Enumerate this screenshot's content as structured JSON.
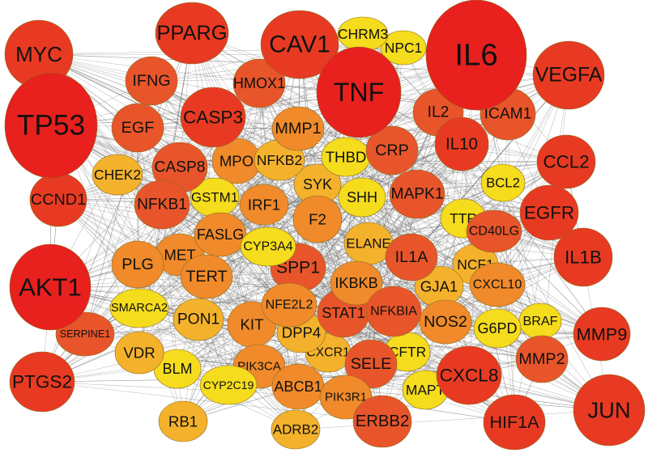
{
  "network": {
    "nodes": [
      {
        "label": "IL6",
        "tier": "max"
      },
      {
        "label": "TP53",
        "tier": "max"
      },
      {
        "label": "TNF",
        "tier": "max"
      },
      {
        "label": "AKT1",
        "tier": "max"
      },
      {
        "label": "JUN",
        "tier": "high"
      },
      {
        "label": "VEGFA",
        "tier": "high"
      },
      {
        "label": "MYC",
        "tier": "high"
      },
      {
        "label": "PPARG",
        "tier": "high"
      },
      {
        "label": "CAV1",
        "tier": "high"
      },
      {
        "label": "IL1B",
        "tier": "high"
      },
      {
        "label": "PTGS2",
        "tier": "high"
      },
      {
        "label": "CXCL8",
        "tier": "high"
      },
      {
        "label": "HIF1A",
        "tier": "high"
      },
      {
        "label": "CASP3",
        "tier": "high"
      },
      {
        "label": "MMP9",
        "tier": "high"
      },
      {
        "label": "CCL2",
        "tier": "high"
      },
      {
        "label": "EGFR",
        "tier": "high"
      },
      {
        "label": "IL10",
        "tier": "high"
      },
      {
        "label": "CCND1",
        "tier": "high"
      },
      {
        "label": "ERBB2",
        "tier": "midhigh"
      },
      {
        "label": "ICAM1",
        "tier": "midhigh"
      },
      {
        "label": "IL2",
        "tier": "midhigh"
      },
      {
        "label": "HMOX1",
        "tier": "midhigh"
      },
      {
        "label": "EGF",
        "tier": "midhigh"
      },
      {
        "label": "IFNG",
        "tier": "midhigh"
      },
      {
        "label": "CASP8",
        "tier": "midhigh"
      },
      {
        "label": "NFKB1",
        "tier": "midhigh"
      },
      {
        "label": "MAPK1",
        "tier": "midhigh"
      },
      {
        "label": "CRP",
        "tier": "midhigh"
      },
      {
        "label": "SPP1",
        "tier": "midhigh"
      },
      {
        "label": "STAT1",
        "tier": "midhigh"
      },
      {
        "label": "NFKBIA",
        "tier": "midhigh"
      },
      {
        "label": "IL1A",
        "tier": "midhigh"
      },
      {
        "label": "SELE",
        "tier": "midhigh"
      },
      {
        "label": "MMP2",
        "tier": "midhigh"
      },
      {
        "label": "SERPINE1",
        "tier": "midhigh"
      },
      {
        "label": "CD40LG",
        "tier": "midhigh"
      },
      {
        "label": "MMP1",
        "tier": "mid"
      },
      {
        "label": "MPO",
        "tier": "mid"
      },
      {
        "label": "PLG",
        "tier": "mid"
      },
      {
        "label": "IKBKB",
        "tier": "mid"
      },
      {
        "label": "NOS2",
        "tier": "mid"
      },
      {
        "label": "CXCL10",
        "tier": "mid"
      },
      {
        "label": "KIT",
        "tier": "mid"
      },
      {
        "label": "PIK3CA",
        "tier": "mid"
      },
      {
        "label": "ABCB1",
        "tier": "mid"
      },
      {
        "label": "PIK3R1",
        "tier": "mid"
      },
      {
        "label": "FASLG",
        "tier": "mid"
      },
      {
        "label": "TERT",
        "tier": "mid"
      },
      {
        "label": "MET",
        "tier": "mid"
      },
      {
        "label": "NFE2L2",
        "tier": "mid"
      },
      {
        "label": "F2",
        "tier": "mid"
      },
      {
        "label": "IRF1",
        "tier": "mid"
      },
      {
        "label": "NFKB2",
        "tier": "low"
      },
      {
        "label": "VDR",
        "tier": "low"
      },
      {
        "label": "PON1",
        "tier": "low"
      },
      {
        "label": "RB1",
        "tier": "low"
      },
      {
        "label": "CHEK2",
        "tier": "low"
      },
      {
        "label": "SYK",
        "tier": "low"
      },
      {
        "label": "ELANE",
        "tier": "low"
      },
      {
        "label": "GJA1",
        "tier": "low"
      },
      {
        "label": "NCF1",
        "tier": "low"
      },
      {
        "label": "DPP4",
        "tier": "low"
      },
      {
        "label": "ADRB2",
        "tier": "low"
      },
      {
        "label": "CXCR1",
        "tier": "low"
      },
      {
        "label": "CYP3A4",
        "tier": "lowest"
      },
      {
        "label": "SHH",
        "tier": "lowest"
      },
      {
        "label": "THBD",
        "tier": "lowest"
      },
      {
        "label": "GSTM1",
        "tier": "lowest"
      },
      {
        "label": "TTR",
        "tier": "lowest"
      },
      {
        "label": "BCL2",
        "tier": "lowest"
      },
      {
        "label": "SMARCA2",
        "tier": "lowest"
      },
      {
        "label": "BLM",
        "tier": "lowest"
      },
      {
        "label": "CYP2C19",
        "tier": "lowest"
      },
      {
        "label": "CFTR",
        "tier": "lowest"
      },
      {
        "label": "MAPT",
        "tier": "lowest"
      },
      {
        "label": "G6PD",
        "tier": "lowest"
      },
      {
        "label": "BRAF",
        "tier": "lowest"
      },
      {
        "label": "CHRM3",
        "tier": "lowest"
      },
      {
        "label": "NPC1",
        "tier": "lowest"
      }
    ],
    "tier_colors": {
      "max": "#e8201e",
      "high": "#e83a22",
      "midhigh": "#e8552a",
      "mid": "#f08a2a",
      "low": "#f4b22c",
      "lowest": "#f5dc1c"
    },
    "edge_color": "#6b6b6b"
  }
}
